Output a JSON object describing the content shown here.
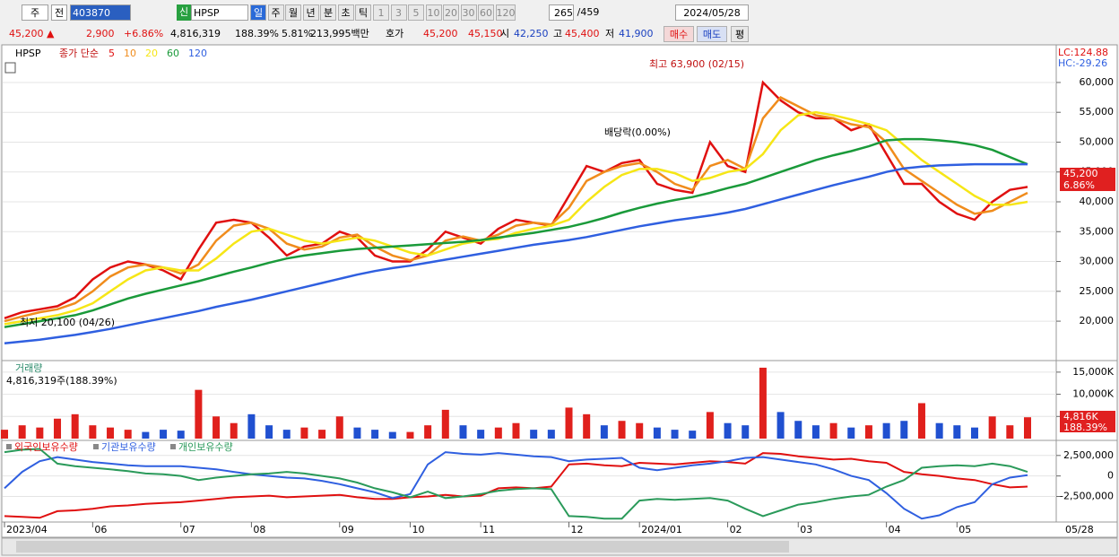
{
  "toolbar": {
    "period_code": "주",
    "prev": "전",
    "code": "403870",
    "badge": "신",
    "name": "HPSP",
    "intervals": [
      "일",
      "주",
      "월",
      "년",
      "분",
      "초",
      "틱"
    ],
    "ticks": [
      "1",
      "3",
      "5",
      "10",
      "20",
      "30",
      "60",
      "120"
    ],
    "count": "265",
    "total": "/459",
    "date": "2024/05/28"
  },
  "quote": {
    "price": "45,200 ▲",
    "change": "2,900",
    "change_pct": "+6.86%",
    "volume": "4,816,319",
    "volume_ratio": "188.39%",
    "turnover": "5.81%",
    "amount": "213,995백만",
    "bid_label": "호가",
    "ask": "45,200",
    "bid": "45,150",
    "open_label": "시",
    "open": "42,250",
    "high_label": "고",
    "high": "45,400",
    "low_label": "저",
    "low": "41,900",
    "buy": "매수",
    "sell": "매도",
    "avg": "평"
  },
  "chart_data": [
    {
      "type": "line",
      "name": "HPSP",
      "legend_title": "종가 단순",
      "lc": "LC:124.88",
      "hc": "HC:-29.26",
      "annotations": [
        "최고 63,900 (02/15)",
        "최저 20,100 (04/26)",
        "배당락(0.00%)"
      ],
      "last_price": "45,200",
      "last_change": "6.86%",
      "ylim": [
        14000,
        64500
      ],
      "yticks": [
        {
          "value": 20000,
          "label": "20,000"
        },
        {
          "value": 25000,
          "label": "25,000"
        },
        {
          "value": 30000,
          "label": "30,000"
        },
        {
          "value": 35000,
          "label": "35,000"
        },
        {
          "value": 40000,
          "label": "40,000"
        },
        {
          "value": 45000,
          "label": "45,000"
        },
        {
          "value": 50000,
          "label": "50,000"
        },
        {
          "value": 55000,
          "label": "55,000"
        },
        {
          "value": 60000,
          "label": "60,000"
        }
      ],
      "series": [
        {
          "name": "5",
          "color": "#e01010",
          "values": [
            20500,
            21500,
            22000,
            22500,
            24000,
            27000,
            29000,
            30000,
            29500,
            28500,
            27000,
            32000,
            36500,
            37000,
            36500,
            34000,
            31000,
            32500,
            33000,
            35000,
            34000,
            31000,
            30000,
            30000,
            32000,
            35000,
            34000,
            33000,
            35500,
            37000,
            36500,
            36000,
            41000,
            46000,
            45000,
            46500,
            47000,
            43000,
            42000,
            41500,
            50000,
            46000,
            45000,
            60000,
            57000,
            55000,
            54000,
            54000,
            52000,
            53000,
            48000,
            43000,
            43000,
            40000,
            38000,
            37000,
            40000,
            42000,
            42500
          ]
        },
        {
          "name": "10",
          "color": "#f08c1c",
          "values": [
            20000,
            20800,
            21500,
            22000,
            23000,
            25000,
            27500,
            29000,
            29500,
            29000,
            28000,
            29500,
            33500,
            36000,
            36500,
            35500,
            33000,
            32000,
            32500,
            34000,
            34500,
            32500,
            31000,
            30200,
            31000,
            33500,
            34200,
            33500,
            34500,
            36000,
            36500,
            36200,
            39000,
            43500,
            45000,
            46000,
            46500,
            45000,
            43000,
            42000,
            46000,
            47000,
            45500,
            54000,
            57500,
            56000,
            54500,
            54000,
            53000,
            52500,
            50000,
            45500,
            43500,
            41500,
            39500,
            38000,
            38500,
            40000,
            41500
          ]
        },
        {
          "name": "20",
          "color": "#f6e616",
          "values": [
            19500,
            20000,
            20500,
            21000,
            21800,
            23000,
            25000,
            27000,
            28500,
            29000,
            28500,
            28500,
            30500,
            33000,
            35000,
            35500,
            34500,
            33500,
            33000,
            33500,
            34000,
            33500,
            32500,
            31500,
            31000,
            32000,
            33000,
            33500,
            33800,
            34800,
            35500,
            36000,
            37000,
            40000,
            42500,
            44500,
            45500,
            45500,
            44800,
            43500,
            44000,
            45000,
            45500,
            48000,
            52000,
            54500,
            55000,
            54500,
            53800,
            53000,
            52000,
            49500,
            47000,
            45000,
            43000,
            41000,
            39500,
            39500,
            40000
          ]
        },
        {
          "name": "60",
          "color": "#1a9a3a",
          "values": [
            19000,
            19500,
            20000,
            20500,
            21000,
            21800,
            22800,
            23800,
            24600,
            25300,
            26000,
            26700,
            27500,
            28300,
            29000,
            29800,
            30500,
            31000,
            31400,
            31800,
            32100,
            32300,
            32500,
            32700,
            32900,
            33100,
            33300,
            33600,
            34000,
            34400,
            34800,
            35300,
            35800,
            36500,
            37300,
            38200,
            39000,
            39700,
            40300,
            40800,
            41500,
            42300,
            43000,
            44000,
            45000,
            46000,
            47000,
            47800,
            48500,
            49300,
            50300,
            50500,
            50500,
            50300,
            50000,
            49500,
            48700,
            47500,
            46300
          ]
        },
        {
          "name": "120",
          "color": "#2f5fe0",
          "values": [
            16300,
            16600,
            16900,
            17300,
            17700,
            18200,
            18700,
            19300,
            19900,
            20500,
            21100,
            21700,
            22400,
            23000,
            23600,
            24300,
            25000,
            25700,
            26400,
            27100,
            27800,
            28400,
            28900,
            29300,
            29800,
            30300,
            30800,
            31300,
            31800,
            32300,
            32800,
            33200,
            33600,
            34100,
            34700,
            35300,
            35900,
            36400,
            36900,
            37300,
            37700,
            38200,
            38800,
            39600,
            40400,
            41200,
            42000,
            42800,
            43500,
            44200,
            45000,
            45600,
            45900,
            46100,
            46200,
            46300,
            46300,
            46300,
            46300
          ]
        }
      ]
    },
    {
      "type": "bar",
      "title": "거래량",
      "subtitle": "4,816,319주(188.39%)",
      "last_label": "4,816K",
      "last_ratio": "188.39%",
      "up_color": "#e0201c",
      "down_color": "#2050d0",
      "ylim": [
        0,
        17000000
      ],
      "yticks": [
        {
          "value": 5000000,
          "label": "5,000K"
        },
        {
          "value": 10000000,
          "label": "10,000K"
        },
        {
          "value": 15000000,
          "label": "15,000K"
        }
      ],
      "values": [
        2000000,
        3000000,
        2500000,
        4500000,
        5500000,
        3000000,
        2500000,
        2000000,
        1500000,
        2000000,
        1800000,
        11000000,
        5000000,
        3500000,
        5500000,
        3000000,
        2000000,
        2500000,
        2000000,
        5000000,
        2500000,
        2000000,
        1500000,
        1500000,
        3000000,
        6500000,
        3000000,
        2000000,
        2500000,
        3500000,
        2000000,
        2000000,
        7000000,
        5500000,
        3000000,
        4000000,
        3500000,
        2500000,
        2000000,
        1800000,
        6000000,
        3500000,
        3000000,
        16000000,
        6000000,
        4000000,
        3000000,
        3500000,
        2500000,
        3000000,
        3500000,
        4000000,
        8000000,
        3500000,
        3000000,
        2500000,
        5000000,
        3000000,
        4816319
      ]
    },
    {
      "type": "line",
      "end_label": "05/28",
      "categories": [
        "2023/04",
        null,
        null,
        null,
        null,
        "06",
        null,
        null,
        null,
        null,
        "07",
        null,
        null,
        null,
        "08",
        null,
        null,
        null,
        null,
        "09",
        null,
        null,
        null,
        "10",
        null,
        null,
        null,
        "11",
        null,
        null,
        null,
        null,
        "12",
        null,
        null,
        null,
        "2024/01",
        null,
        null,
        null,
        null,
        "02",
        null,
        null,
        null,
        "03",
        null,
        null,
        null,
        null,
        "04",
        null,
        null,
        null,
        "05",
        null,
        null,
        null,
        null
      ],
      "ylim": [
        -5400000,
        3900000
      ],
      "yticks": [
        {
          "value": -2500000,
          "label": "-2,500,000"
        },
        0,
        {
          "value": 2500000,
          "label": "2,500,000"
        }
      ],
      "series": [
        {
          "name": "외국인보유수량",
          "color": "#e01010",
          "values": [
            -4900000,
            -5000000,
            -5100000,
            -4300000,
            -4200000,
            -4000000,
            -3700000,
            -3600000,
            -3400000,
            -3300000,
            -3200000,
            -3000000,
            -2800000,
            -2600000,
            -2500000,
            -2400000,
            -2600000,
            -2500000,
            -2400000,
            -2300000,
            -2600000,
            -2800000,
            -2800000,
            -2600000,
            -2500000,
            -2300000,
            -2500000,
            -2400000,
            -1500000,
            -1400000,
            -1500000,
            -1300000,
            1400000,
            1500000,
            1300000,
            1200000,
            1600000,
            1500000,
            1400000,
            1600000,
            1800000,
            1700000,
            1500000,
            2800000,
            2700000,
            2400000,
            2200000,
            2000000,
            2100000,
            1800000,
            1600000,
            500000,
            200000,
            0,
            -300000,
            -500000,
            -1000000,
            -1400000,
            -1300000
          ]
        },
        {
          "name": "기관보유수량",
          "color": "#2f5fe0",
          "values": [
            -1500000,
            500000,
            1800000,
            2300000,
            2000000,
            1700000,
            1500000,
            1300000,
            1200000,
            1200000,
            1200000,
            1000000,
            800000,
            500000,
            200000,
            0,
            -200000,
            -300000,
            -600000,
            -1000000,
            -1500000,
            -2000000,
            -2700000,
            -2200000,
            1400000,
            2900000,
            2700000,
            2600000,
            2800000,
            2600000,
            2400000,
            2300000,
            1800000,
            2000000,
            2100000,
            2200000,
            1000000,
            700000,
            1000000,
            1300000,
            1500000,
            1800000,
            2200000,
            2300000,
            2000000,
            1700000,
            1400000,
            800000,
            0,
            -500000,
            -2100000,
            -4000000,
            -5200000,
            -4800000,
            -3800000,
            -3200000,
            -1000000,
            -200000,
            100000
          ]
        },
        {
          "name": "개인보유수량",
          "color": "#2a9a5a",
          "values": [
            2900000,
            3200000,
            3300000,
            1500000,
            1200000,
            1000000,
            800000,
            600000,
            300000,
            200000,
            0,
            -500000,
            -200000,
            0,
            200000,
            300000,
            500000,
            300000,
            0,
            -300000,
            -800000,
            -1500000,
            -2000000,
            -2600000,
            -1900000,
            -2700000,
            -2500000,
            -2200000,
            -1800000,
            -1600000,
            -1500000,
            -1600000,
            -4900000,
            -5000000,
            -5200000,
            -5200000,
            -3000000,
            -2800000,
            -2900000,
            -2800000,
            -2700000,
            -3000000,
            -4000000,
            -4900000,
            -4200000,
            -3500000,
            -3200000,
            -2800000,
            -2500000,
            -2300000,
            -1300000,
            -500000,
            1000000,
            1200000,
            1300000,
            1200000,
            1500000,
            1200000,
            500000
          ]
        }
      ]
    }
  ]
}
